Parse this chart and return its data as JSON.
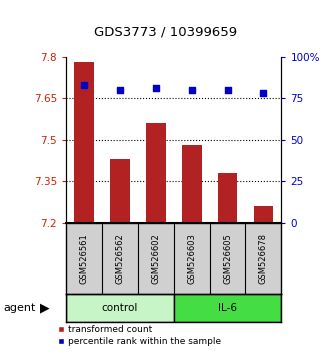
{
  "title": "GDS3773 / 10399659",
  "samples": [
    "GSM526561",
    "GSM526562",
    "GSM526602",
    "GSM526603",
    "GSM526605",
    "GSM526678"
  ],
  "bar_values": [
    7.78,
    7.43,
    7.56,
    7.48,
    7.38,
    7.26
  ],
  "percentile_values": [
    83,
    80,
    81,
    80,
    80,
    78
  ],
  "bar_color": "#b22222",
  "percentile_color": "#0000cc",
  "ylim_left": [
    7.2,
    7.8
  ],
  "ylim_right": [
    0,
    100
  ],
  "yticks_left": [
    7.2,
    7.35,
    7.5,
    7.65,
    7.8
  ],
  "ytick_labels_left": [
    "7.2",
    "7.35",
    "7.5",
    "7.65",
    "7.8"
  ],
  "yticks_right": [
    0,
    25,
    50,
    75,
    100
  ],
  "ytick_labels_right": [
    "0",
    "25",
    "50",
    "75",
    "100%"
  ],
  "control_color": "#c8f5c8",
  "il6_color": "#44dd44",
  "gray_color": "#d0d0d0",
  "legend_items": [
    {
      "label": "transformed count",
      "color": "#b22222"
    },
    {
      "label": "percentile rank within the sample",
      "color": "#0000cc"
    }
  ],
  "bar_bottom": 7.2,
  "agent_label": "agent"
}
